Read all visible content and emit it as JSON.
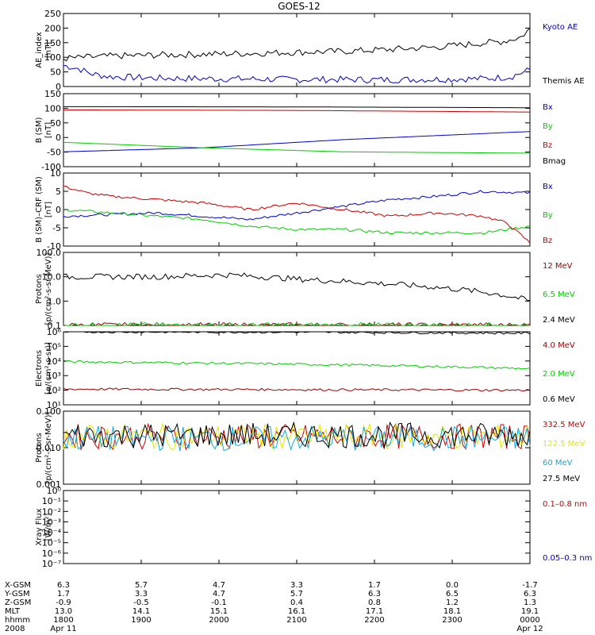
{
  "title": "GOES-12",
  "colors": {
    "black": "#000000",
    "blue": "#0000cc",
    "red": "#cc0000",
    "green": "#00cc00",
    "darkred": "#990000",
    "yellow": "#e6e600",
    "cyan": "#11aadd"
  },
  "chart_data": [
    {
      "type": "line",
      "ylabel": [
        "AE_index",
        "[nT]"
      ],
      "yticks": [
        "250",
        "200",
        "150",
        "100",
        "50",
        "0"
      ],
      "ylim": [
        0,
        260
      ],
      "series": [
        {
          "name": "Kyoto AE",
          "color": "#0000cc",
          "x": [
            0,
            0.03,
            0.06,
            0.1,
            0.2,
            0.3,
            0.4,
            0.5,
            0.6,
            0.7,
            0.8,
            0.9,
            0.96,
            1.0
          ],
          "values": [
            75,
            65,
            45,
            35,
            30,
            28,
            27,
            25,
            25,
            24,
            26,
            28,
            35,
            60
          ]
        },
        {
          "name": "Themis AE",
          "color": "#000000",
          "x": [
            0,
            0.1,
            0.2,
            0.3,
            0.4,
            0.5,
            0.6,
            0.7,
            0.8,
            0.9,
            0.94,
            0.98,
            1.0
          ],
          "values": [
            100,
            108,
            112,
            115,
            118,
            122,
            125,
            132,
            140,
            155,
            160,
            175,
            205
          ]
        }
      ],
      "noise": 12
    },
    {
      "type": "line",
      "ylabel": [
        "B (SM)",
        "[nT]"
      ],
      "yticks": [
        "150",
        "100",
        "50",
        "0",
        "-50",
        "-100"
      ],
      "ylim": [
        -110,
        160
      ],
      "series": [
        {
          "name": "Bx",
          "color": "#0000cc",
          "x": [
            0,
            0.3,
            0.6,
            1.0
          ],
          "values": [
            -55,
            -40,
            -10,
            20
          ]
        },
        {
          "name": "By",
          "color": "#00cc00",
          "x": [
            0,
            0.3,
            0.6,
            1.0
          ],
          "values": [
            -20,
            -40,
            -55,
            -60
          ]
        },
        {
          "name": "Bz",
          "color": "#cc0000",
          "x": [
            0,
            0.5,
            1.0
          ],
          "values": [
            100,
            98,
            92
          ]
        },
        {
          "name": "Bmag",
          "color": "#000000",
          "x": [
            0,
            0.5,
            1.0
          ],
          "values": [
            112,
            111,
            108
          ]
        }
      ],
      "noise": 0
    },
    {
      "type": "line",
      "ylabel": [
        "B (SM)–CRF (SM)",
        "[nT]"
      ],
      "yticks": [
        "10",
        "5",
        "0",
        "-5",
        "-10"
      ],
      "ylim": [
        -11,
        11
      ],
      "series": [
        {
          "name": "Bx",
          "color": "#0000cc",
          "x": [
            0,
            0.2,
            0.3,
            0.4,
            0.5,
            0.6,
            0.7,
            0.8,
            0.9,
            1.0
          ],
          "values": [
            -2,
            -1,
            -2,
            -3,
            -1,
            1,
            3,
            4,
            5.5,
            5
          ]
        },
        {
          "name": "By",
          "color": "#00cc00",
          "x": [
            0,
            0.1,
            0.2,
            0.3,
            0.4,
            0.5,
            0.6,
            0.7,
            0.8,
            0.9,
            1.0
          ],
          "values": [
            0,
            -1,
            -2,
            -3,
            -5,
            -6,
            -6,
            -7,
            -7,
            -7,
            -5
          ]
        },
        {
          "name": "Bz",
          "color": "#cc0000",
          "x": [
            0,
            0.05,
            0.1,
            0.2,
            0.3,
            0.4,
            0.5,
            0.55,
            0.6,
            0.7,
            0.8,
            0.9,
            0.95,
            1.0
          ],
          "values": [
            7,
            5,
            4,
            3,
            2,
            0,
            2,
            1,
            0,
            -2,
            -1,
            -2,
            -4,
            -10
          ]
        }
      ],
      "noise": 0.4
    },
    {
      "type": "line",
      "scale": "log",
      "ylabel": [
        "Protons",
        "[p/(cm²-s-sr-MeV)]"
      ],
      "yticks": [
        "100.0",
        "10.0",
        "1.0",
        "0.1"
      ],
      "ylim": [
        0.1,
        100
      ],
      "series": [
        {
          "name": "12 MeV",
          "color": "#990000",
          "x": [
            0,
            1
          ],
          "values": [
            0.1,
            0.1
          ]
        },
        {
          "name": "6.5 MeV",
          "color": "#00cc00",
          "x": [
            0,
            1
          ],
          "values": [
            0.1,
            0.1
          ]
        },
        {
          "name": "2.4 MeV",
          "color": "#000000",
          "x": [
            0,
            0.2,
            0.35,
            0.5,
            0.7,
            0.85,
            1.0
          ],
          "values": [
            10,
            10,
            12,
            8,
            5,
            3,
            1
          ]
        }
      ],
      "noise": 0.12
    },
    {
      "type": "line",
      "scale": "log",
      "ylabel": [
        "Electrons",
        "[e/(cm²-s-sr)]"
      ],
      "yticks": [
        "10⁶",
        "10⁵",
        "10⁴",
        "10³",
        "10²",
        "10¹"
      ],
      "ylim": [
        10,
        1000000
      ],
      "series": [
        {
          "name": "4.0 MeV",
          "color": "#990000",
          "x": [
            0,
            0.5,
            1.0
          ],
          "values": [
            120,
            110,
            100
          ]
        },
        {
          "name": "2.0 MeV",
          "color": "#00cc00",
          "x": [
            0,
            0.5,
            1.0
          ],
          "values": [
            9000,
            6000,
            3000
          ]
        },
        {
          "name": "0.6 MeV",
          "color": "#000000",
          "x": [
            0,
            0.5,
            1.0
          ],
          "values": [
            1000000,
            950000,
            800000
          ]
        }
      ],
      "noise": 0.08
    },
    {
      "type": "line",
      "scale": "log",
      "ylabel": [
        "Protons",
        "[p/(cm²-s-sr-MeV)]"
      ],
      "yticks": [
        "0.100",
        "0.010",
        "0.001"
      ],
      "ylim": [
        0.001,
        0.1
      ],
      "series": [
        {
          "name": "332.5 MeV",
          "color": "#cc0000",
          "x": [
            0,
            1
          ],
          "values": [
            0.02,
            0.02
          ]
        },
        {
          "name": "122.5 MeV",
          "color": "#e6e600",
          "x": [
            0,
            1
          ],
          "values": [
            0.02,
            0.02
          ]
        },
        {
          "name": "60 MeV",
          "color": "#11aadd",
          "x": [
            0,
            1
          ],
          "values": [
            0.018,
            0.018
          ]
        },
        {
          "name": "27.5 MeV",
          "color": "#000000",
          "x": [
            0,
            1
          ],
          "values": [
            0.022,
            0.022
          ]
        }
      ],
      "noise": 0.35
    },
    {
      "type": "line",
      "scale": "log",
      "ylabel": [
        "Xray Flux",
        "[W/m²]"
      ],
      "yticks": [
        "10⁰",
        "10⁻¹",
        "10⁻²",
        "10⁻³",
        "10⁻⁴",
        "10⁻⁵",
        "10⁻⁶",
        "10⁻⁷"
      ],
      "ylim": [
        1e-07,
        1
      ],
      "series": [
        {
          "name": "0.1–0.8 nm",
          "color": "#cc0000",
          "x": [],
          "values": []
        },
        {
          "name": "0.05–0.3 nm",
          "color": "#0000cc",
          "x": [],
          "values": []
        }
      ],
      "noise": 0
    }
  ],
  "xaxis": {
    "row_labels": [
      "X-GSM",
      "Y-GSM",
      "Z-GSM",
      "MLT",
      "hhmm",
      "2008"
    ],
    "columns": [
      [
        "6.3",
        "1.7",
        "-0.9",
        "13.0",
        "1800",
        "Apr 11"
      ],
      [
        "5.7",
        "3.3",
        "-0.5",
        "14.1",
        "1900",
        ""
      ],
      [
        "4.7",
        "4.7",
        "-0.1",
        "15.1",
        "2000",
        ""
      ],
      [
        "3.3",
        "5.7",
        "0.4",
        "16.1",
        "2100",
        ""
      ],
      [
        "1.7",
        "6.3",
        "0.8",
        "17.1",
        "2200",
        ""
      ],
      [
        "0.0",
        "6.5",
        "1.2",
        "18.1",
        "2300",
        ""
      ],
      [
        "-1.7",
        "6.3",
        "1.3",
        "19.1",
        "0000",
        "Apr 12"
      ]
    ]
  }
}
